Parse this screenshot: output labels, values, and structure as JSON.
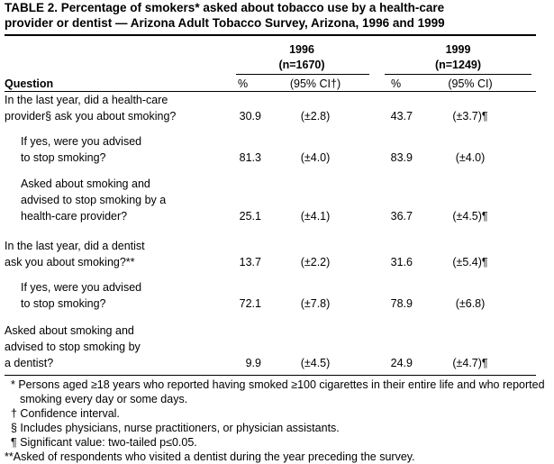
{
  "title": [
    "TABLE 2. Percentage of smokers* asked about tobacco use by a health-care",
    "provider or dentist — Arizona Adult Tobacco Survey, Arizona, 1996 and 1999"
  ],
  "table": {
    "groups": [
      {
        "year": "1996",
        "n": "(n=1670)"
      },
      {
        "year": "1999",
        "n": "(n=1249)"
      }
    ],
    "header": [
      "Question",
      "%",
      "(95% CI†)",
      "%",
      "(95% CI)"
    ],
    "rows": [
      {
        "question": [
          "In the last year, did a health-care",
          "provider§ ask you about smoking?"
        ],
        "cells": [
          30.9,
          "(±2.8)",
          43.7,
          "(±3.7)¶"
        ]
      },
      {
        "question": [
          "If yes, were you advised",
          "to stop smoking?"
        ],
        "cells": [
          81.3,
          "(±4.0)",
          83.9,
          "(±4.0)"
        ]
      },
      {
        "question": [
          "Asked about smoking and",
          "advised to stop smoking by a",
          "health-care provider?"
        ],
        "cells": [
          25.1,
          "(±4.1)",
          36.7,
          "(±4.5)¶"
        ]
      },
      {
        "question": [
          "In the last year, did a dentist",
          "ask you about smoking?**"
        ],
        "cells": [
          13.7,
          "(±2.2)",
          31.6,
          "(±5.4)¶"
        ]
      },
      {
        "question": [
          "If yes, were you advised",
          "to stop smoking?"
        ],
        "cells": [
          72.1,
          "(±7.8)",
          78.9,
          "(±6.8)"
        ]
      },
      {
        "question": [
          "Asked about smoking and",
          "advised to stop smoking by",
          "a dentist?"
        ],
        "cells": [
          9.9,
          "(±4.5)",
          24.9,
          "(±4.7)¶"
        ]
      }
    ]
  },
  "footnotes": [
    "* Persons aged ≥18 years who reported having smoked ≥100 cigarettes in their entire life and who reported smoking every day or some days.",
    "† Confidence interval.",
    "§ Includes physicians, nurse practitioners, or physician assistants.",
    "¶ Significant value: two-tailed p≤0.05.",
    "**Asked of respondents who visited a dentist during the year preceding the survey."
  ]
}
